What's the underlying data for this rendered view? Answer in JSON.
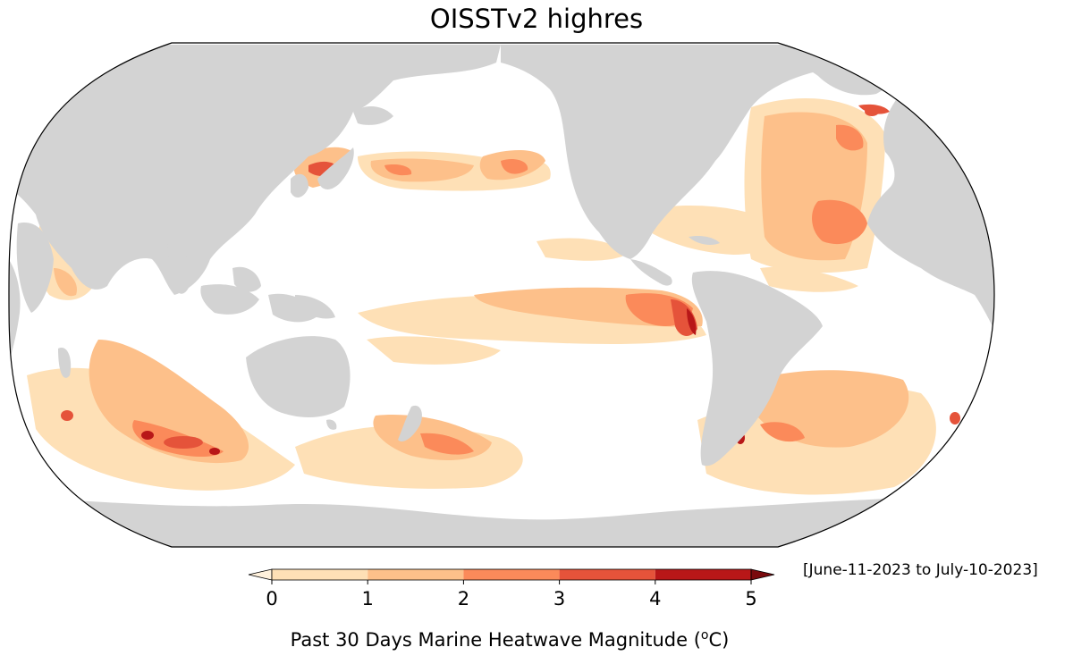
{
  "title": "OISSTv2 highres",
  "date_range": "[June-11-2023 to July-10-2023]",
  "colorbar": {
    "label_prefix": "Past 30 Days Marine Heatwave Magnitude (",
    "label_sup": "o",
    "label_suffix": "C)",
    "ticks": [
      "0",
      "1",
      "2",
      "3",
      "4",
      "5"
    ],
    "tick_values": [
      0,
      1,
      2,
      3,
      4,
      5
    ],
    "bins": [
      {
        "from": 0,
        "to": 1,
        "color": "#fee0b6"
      },
      {
        "from": 1,
        "to": 2,
        "color": "#fdc08a"
      },
      {
        "from": 2,
        "to": 3,
        "color": "#fb8a5a"
      },
      {
        "from": 3,
        "to": 4,
        "color": "#e5533a"
      },
      {
        "from": 4,
        "to": 5,
        "color": "#b81718"
      }
    ],
    "under_color": "#fff1dc",
    "over_color": "#7a0a0d"
  },
  "map": {
    "projection": "Robinson",
    "central_longitude": 180,
    "land_color": "#d3d3d3",
    "ocean_color": "#ffffff"
  }
}
